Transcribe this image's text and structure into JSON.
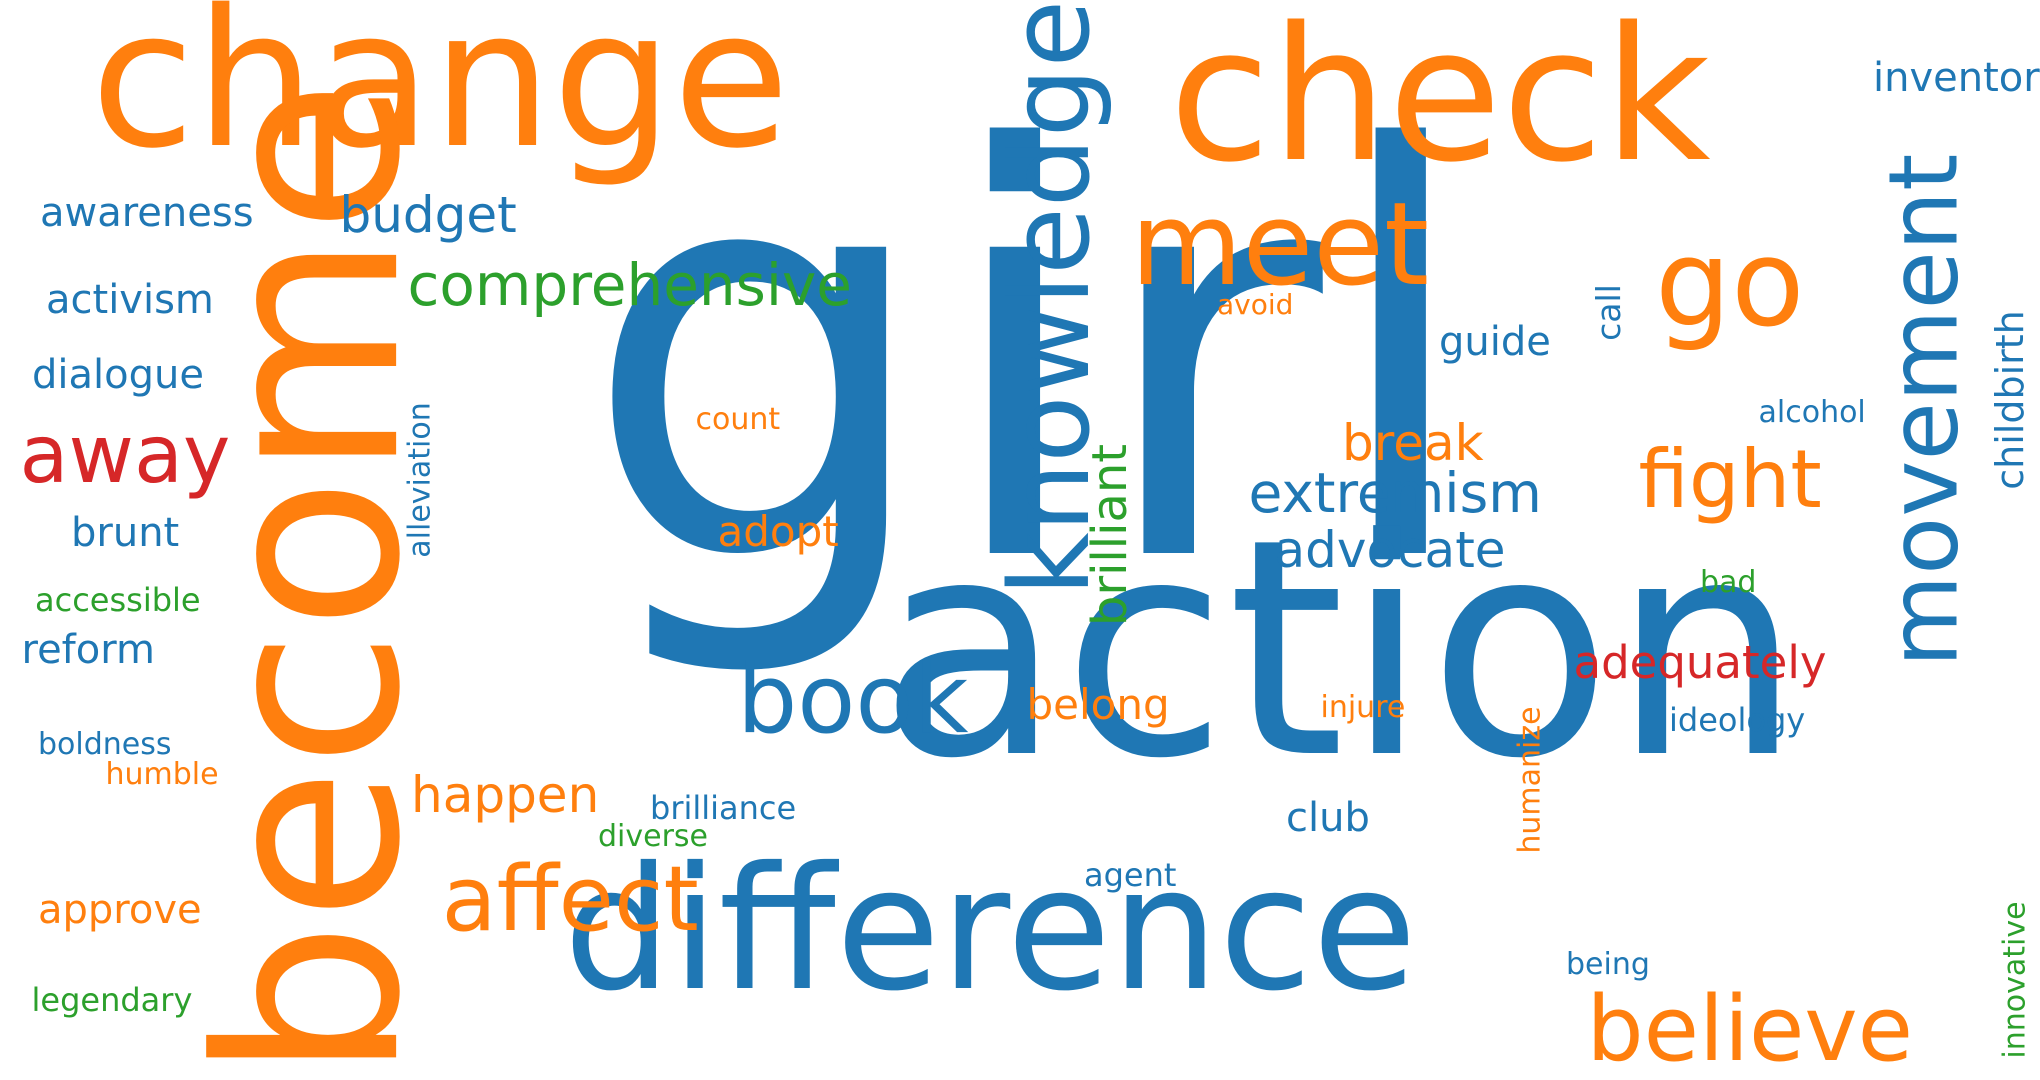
{
  "colors": {
    "blue": "#1f77b4",
    "orange": "#ff7f0e",
    "green": "#2ca02c",
    "red": "#d62728",
    "background": "#ffffff"
  },
  "words": [
    {
      "text": "girl",
      "color": "blue",
      "orientation": "horizontal"
    },
    {
      "text": "action",
      "color": "blue",
      "orientation": "horizontal"
    },
    {
      "text": "change",
      "color": "orange",
      "orientation": "horizontal"
    },
    {
      "text": "check",
      "color": "orange",
      "orientation": "horizontal"
    },
    {
      "text": "become",
      "color": "orange",
      "orientation": "vertical"
    },
    {
      "text": "difference",
      "color": "blue",
      "orientation": "horizontal"
    },
    {
      "text": "knowledge",
      "color": "blue",
      "orientation": "vertical"
    },
    {
      "text": "movement",
      "color": "blue",
      "orientation": "vertical"
    },
    {
      "text": "meet",
      "color": "orange",
      "orientation": "horizontal"
    },
    {
      "text": "go",
      "color": "orange",
      "orientation": "horizontal"
    },
    {
      "text": "book",
      "color": "blue",
      "orientation": "horizontal"
    },
    {
      "text": "believe",
      "color": "orange",
      "orientation": "horizontal"
    },
    {
      "text": "affect",
      "color": "orange",
      "orientation": "horizontal"
    },
    {
      "text": "fight",
      "color": "orange",
      "orientation": "horizontal"
    },
    {
      "text": "away",
      "color": "red",
      "orientation": "horizontal"
    },
    {
      "text": "comprehensive",
      "color": "green",
      "orientation": "horizontal"
    },
    {
      "text": "extremism",
      "color": "blue",
      "orientation": "horizontal"
    },
    {
      "text": "advocate",
      "color": "blue",
      "orientation": "horizontal"
    },
    {
      "text": "brilliant",
      "color": "green",
      "orientation": "vertical"
    },
    {
      "text": "budget",
      "color": "blue",
      "orientation": "horizontal"
    },
    {
      "text": "break",
      "color": "orange",
      "orientation": "horizontal"
    },
    {
      "text": "happen",
      "color": "orange",
      "orientation": "horizontal"
    },
    {
      "text": "adequately",
      "color": "red",
      "orientation": "horizontal"
    },
    {
      "text": "inventor",
      "color": "blue",
      "orientation": "horizontal"
    },
    {
      "text": "childbirth",
      "color": "blue",
      "orientation": "vertical"
    },
    {
      "text": "awareness",
      "color": "blue",
      "orientation": "horizontal"
    },
    {
      "text": "activism",
      "color": "blue",
      "orientation": "horizontal"
    },
    {
      "text": "dialogue",
      "color": "blue",
      "orientation": "horizontal"
    },
    {
      "text": "brunt",
      "color": "blue",
      "orientation": "horizontal"
    },
    {
      "text": "reform",
      "color": "blue",
      "orientation": "horizontal"
    },
    {
      "text": "adopt",
      "color": "orange",
      "orientation": "horizontal"
    },
    {
      "text": "belong",
      "color": "orange",
      "orientation": "horizontal"
    },
    {
      "text": "approve",
      "color": "orange",
      "orientation": "horizontal"
    },
    {
      "text": "guide",
      "color": "blue",
      "orientation": "horizontal"
    },
    {
      "text": "club",
      "color": "blue",
      "orientation": "horizontal"
    },
    {
      "text": "call",
      "color": "blue",
      "orientation": "vertical"
    },
    {
      "text": "alleviation",
      "color": "blue",
      "orientation": "vertical"
    },
    {
      "text": "accessible",
      "color": "green",
      "orientation": "horizontal"
    },
    {
      "text": "boldness",
      "color": "blue",
      "orientation": "horizontal"
    },
    {
      "text": "humble",
      "color": "orange",
      "orientation": "horizontal"
    },
    {
      "text": "brilliance",
      "color": "blue",
      "orientation": "horizontal"
    },
    {
      "text": "diverse",
      "color": "green",
      "orientation": "horizontal"
    },
    {
      "text": "legendary",
      "color": "green",
      "orientation": "horizontal"
    },
    {
      "text": "count",
      "color": "orange",
      "orientation": "horizontal"
    },
    {
      "text": "avoid",
      "color": "orange",
      "orientation": "horizontal"
    },
    {
      "text": "alcohol",
      "color": "blue",
      "orientation": "horizontal"
    },
    {
      "text": "bad",
      "color": "green",
      "orientation": "horizontal"
    },
    {
      "text": "ideology",
      "color": "blue",
      "orientation": "horizontal"
    },
    {
      "text": "injure",
      "color": "orange",
      "orientation": "horizontal"
    },
    {
      "text": "humanize",
      "color": "orange",
      "orientation": "vertical"
    },
    {
      "text": "agent",
      "color": "blue",
      "orientation": "horizontal"
    },
    {
      "text": "being",
      "color": "blue",
      "orientation": "horizontal"
    },
    {
      "text": "innovative",
      "color": "green",
      "orientation": "vertical"
    }
  ]
}
